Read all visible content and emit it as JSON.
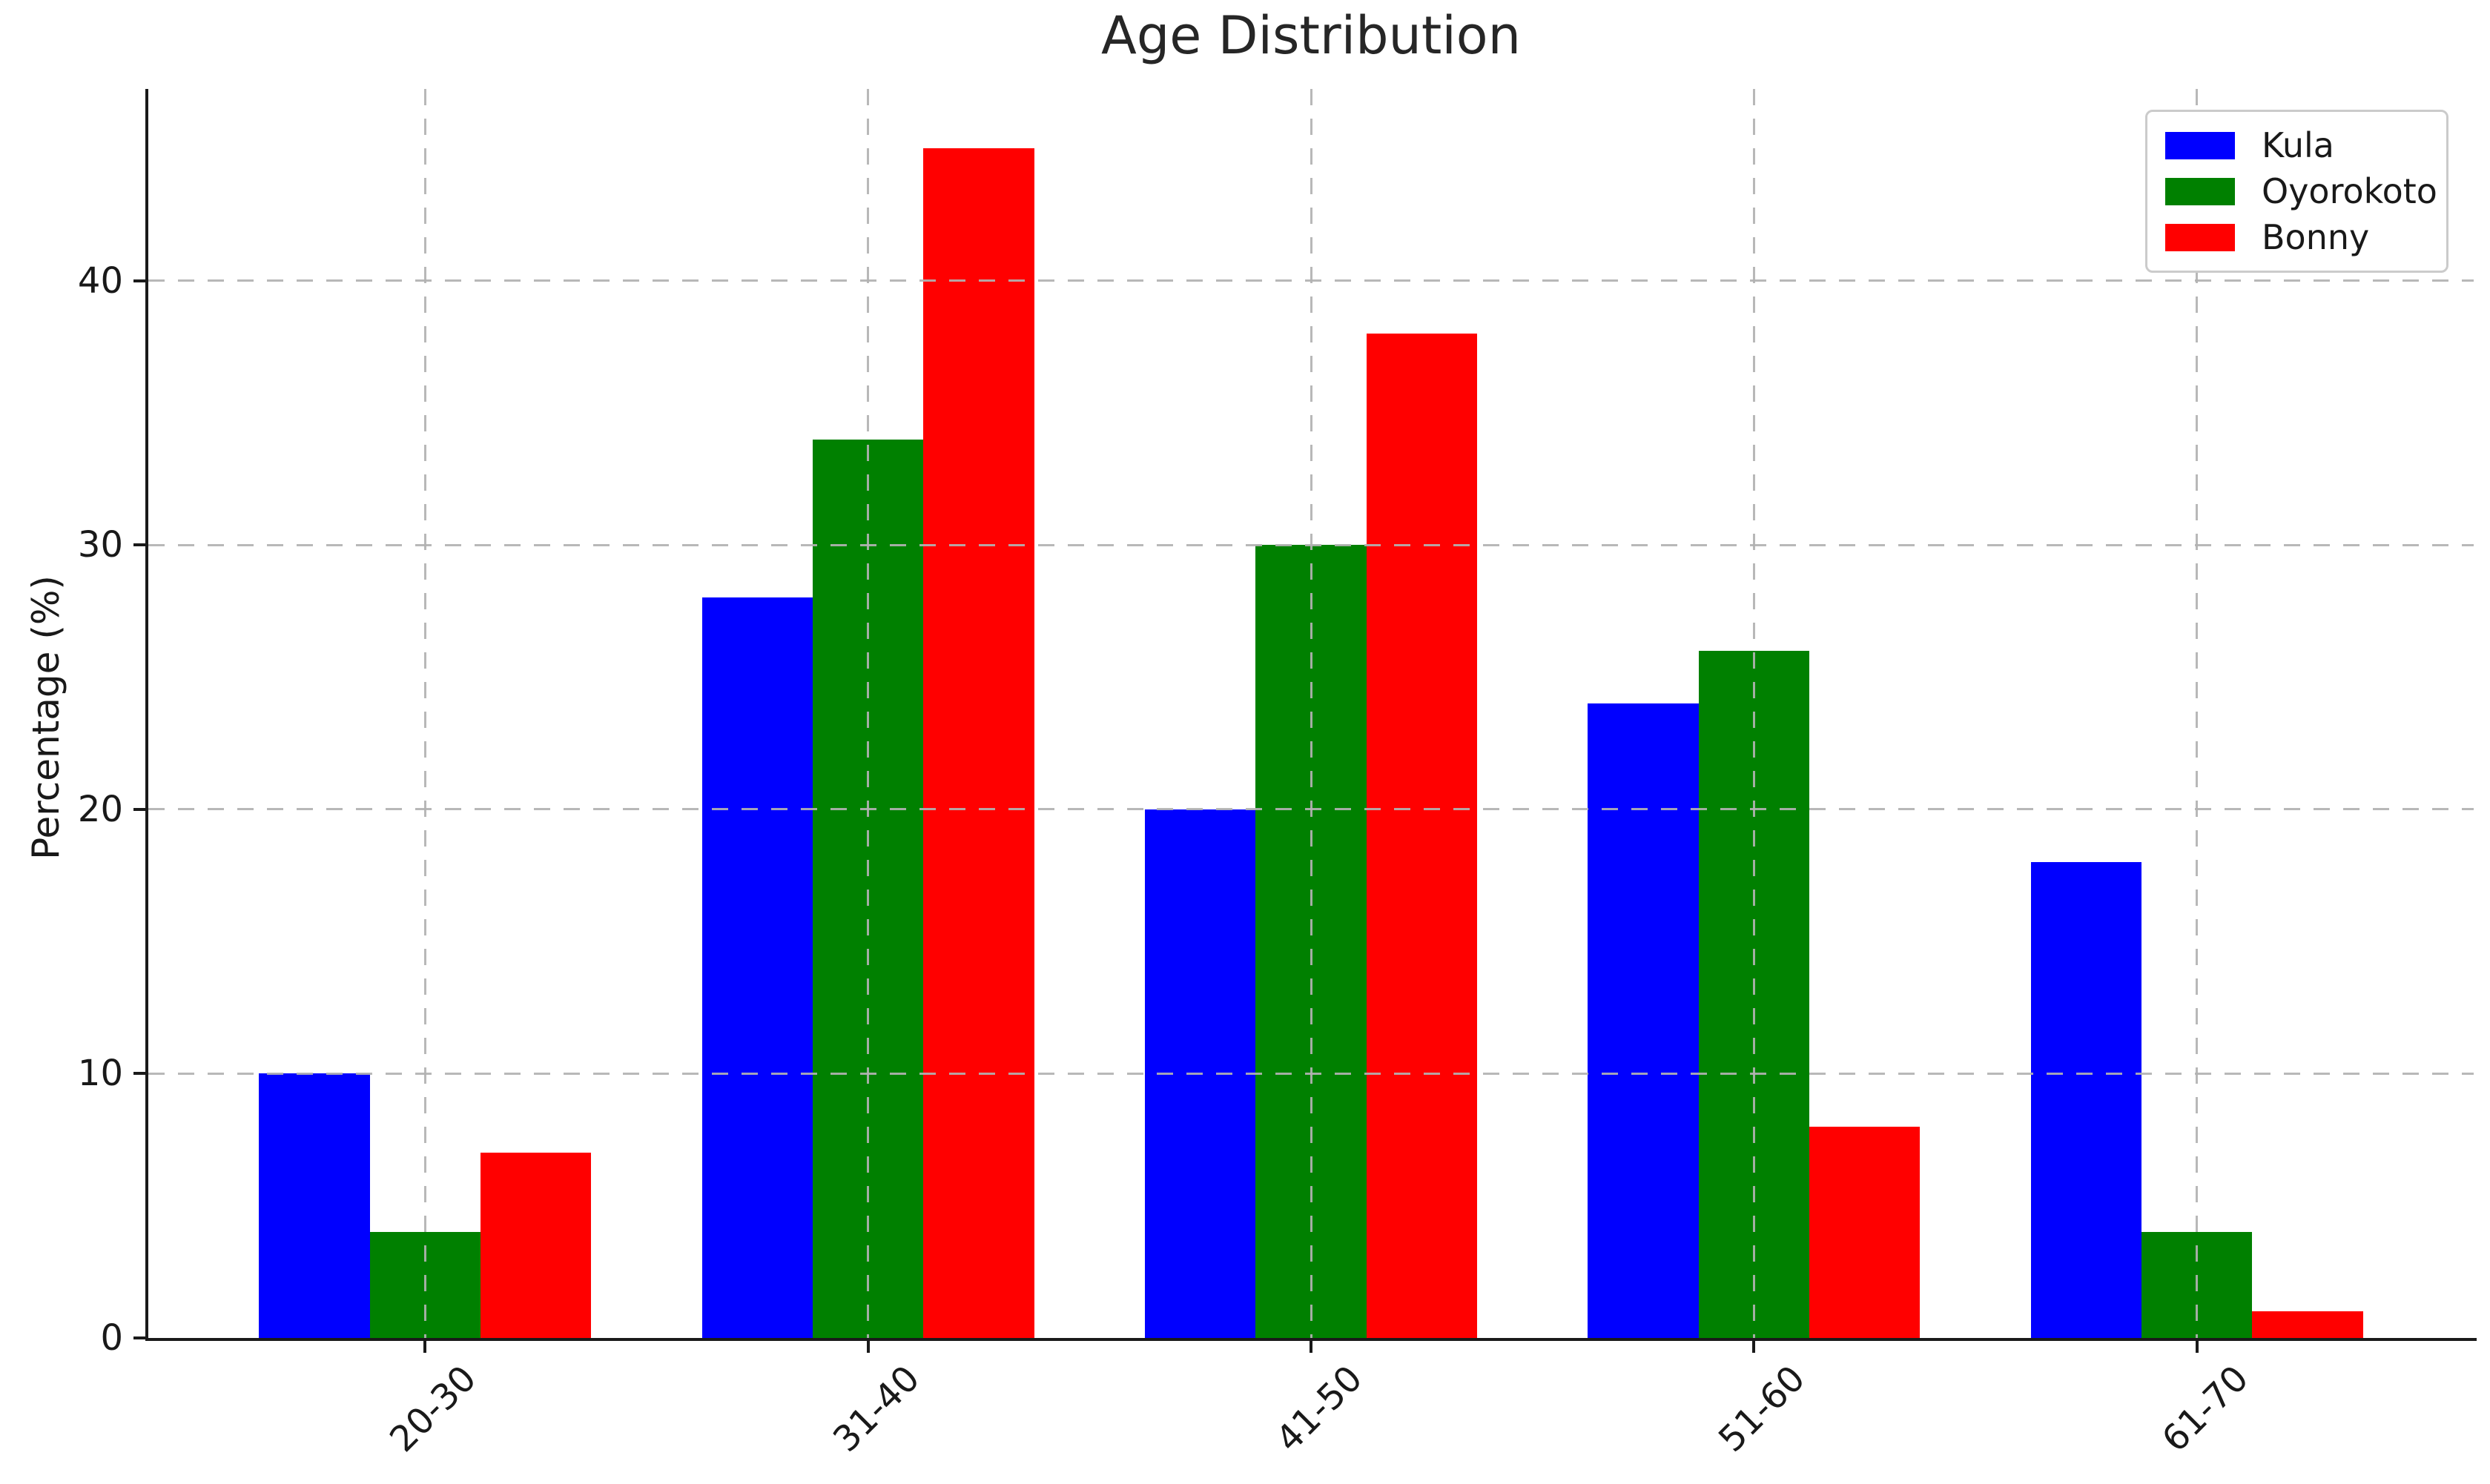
{
  "figure": {
    "background_color": "#ffffff",
    "text_color": "#191919",
    "spine_color": "#1a1a1a",
    "gridline_color": "#b2b2b2",
    "legend_border_color": "#cbcbcb"
  },
  "chart_data": {
    "type": "bar",
    "title": "Age Distribution",
    "xlabel": "",
    "ylabel": "Percentage (%)",
    "categories": [
      "20-30",
      "31-40",
      "41-50",
      "51-60",
      "61-70"
    ],
    "series": [
      {
        "name": "Kula",
        "color": "#0000ff",
        "values": [
          10,
          28,
          20,
          24,
          18
        ]
      },
      {
        "name": "Oyorokoto",
        "color": "#008000",
        "values": [
          4,
          34,
          30,
          26,
          4
        ]
      },
      {
        "name": "Bonny",
        "color": "#ff0000",
        "values": [
          7,
          45,
          38,
          8,
          1
        ]
      }
    ],
    "yticks": [
      0,
      10,
      20,
      30,
      40
    ],
    "ylim": [
      0,
      47.25
    ],
    "xtick_rotation": 45,
    "grid": "dashed, horizontal and vertical, drawn above bars",
    "legend_position": "upper right",
    "bars_per_group": 3
  }
}
